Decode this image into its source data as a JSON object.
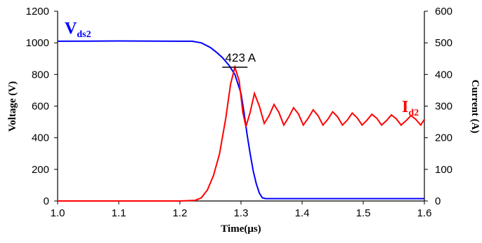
{
  "chart_data": {
    "type": "line",
    "xlabel": "Time(μs)",
    "ylabel_left": "Voltage (V)",
    "ylabel_right": "Current (A)",
    "xlim": [
      1.0,
      1.6
    ],
    "ylim_left": [
      0,
      1200
    ],
    "ylim_right": [
      0,
      600
    ],
    "x_ticks": [
      "1.0",
      "1.1",
      "1.2",
      "1.3",
      "1.4",
      "1.5",
      "1.6"
    ],
    "y_left_ticks": [
      "0",
      "200",
      "400",
      "600",
      "800",
      "1000",
      "1200"
    ],
    "y_right_ticks": [
      "0",
      "100",
      "200",
      "300",
      "400",
      "500",
      "600"
    ],
    "grid": false,
    "series": [
      {
        "label_main": "V",
        "label_sub": "ds2",
        "axis": "left",
        "color": "#0000ff",
        "points": [
          [
            1.0,
            1010
          ],
          [
            1.1,
            1012
          ],
          [
            1.2,
            1010
          ],
          [
            1.22,
            1010
          ],
          [
            1.235,
            1000
          ],
          [
            1.25,
            970
          ],
          [
            1.26,
            940
          ],
          [
            1.27,
            905
          ],
          [
            1.28,
            860
          ],
          [
            1.29,
            800
          ],
          [
            1.3,
            680
          ],
          [
            1.305,
            560
          ],
          [
            1.31,
            420
          ],
          [
            1.315,
            300
          ],
          [
            1.32,
            190
          ],
          [
            1.325,
            110
          ],
          [
            1.33,
            50
          ],
          [
            1.335,
            20
          ],
          [
            1.34,
            15
          ],
          [
            1.36,
            15
          ],
          [
            1.4,
            15
          ],
          [
            1.5,
            15
          ],
          [
            1.6,
            15
          ]
        ]
      },
      {
        "label_main": "I",
        "label_sub": "d2",
        "axis": "right",
        "color": "#ff0000",
        "points": [
          [
            1.0,
            0
          ],
          [
            1.2,
            0
          ],
          [
            1.225,
            2
          ],
          [
            1.235,
            10
          ],
          [
            1.245,
            35
          ],
          [
            1.255,
            80
          ],
          [
            1.265,
            150
          ],
          [
            1.275,
            260
          ],
          [
            1.283,
            370
          ],
          [
            1.29,
            423
          ],
          [
            1.297,
            380
          ],
          [
            1.303,
            280
          ],
          [
            1.308,
            235
          ],
          [
            1.315,
            280
          ],
          [
            1.322,
            340
          ],
          [
            1.33,
            300
          ],
          [
            1.338,
            245
          ],
          [
            1.346,
            270
          ],
          [
            1.354,
            305
          ],
          [
            1.362,
            280
          ],
          [
            1.37,
            240
          ],
          [
            1.378,
            265
          ],
          [
            1.386,
            295
          ],
          [
            1.394,
            275
          ],
          [
            1.402,
            240
          ],
          [
            1.41,
            262
          ],
          [
            1.418,
            288
          ],
          [
            1.426,
            270
          ],
          [
            1.434,
            240
          ],
          [
            1.442,
            258
          ],
          [
            1.45,
            282
          ],
          [
            1.458,
            266
          ],
          [
            1.466,
            240
          ],
          [
            1.474,
            256
          ],
          [
            1.482,
            278
          ],
          [
            1.49,
            263
          ],
          [
            1.498,
            240
          ],
          [
            1.506,
            255
          ],
          [
            1.514,
            274
          ],
          [
            1.522,
            262
          ],
          [
            1.53,
            240
          ],
          [
            1.538,
            254
          ],
          [
            1.546,
            272
          ],
          [
            1.554,
            260
          ],
          [
            1.562,
            240
          ],
          [
            1.57,
            254
          ],
          [
            1.578,
            270
          ],
          [
            1.586,
            258
          ],
          [
            1.594,
            240
          ],
          [
            1.6,
            258
          ]
        ]
      }
    ],
    "annotation": {
      "text": "423 A",
      "x": 1.29,
      "y": 423,
      "axis": "right"
    }
  }
}
